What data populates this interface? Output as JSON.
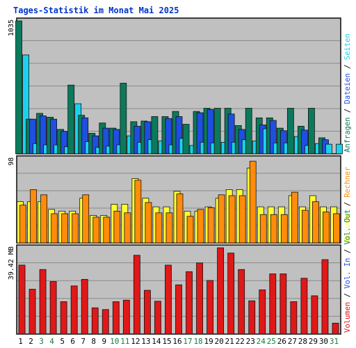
{
  "title": "Tages-Statistik im Monat Mai 2025",
  "colors": {
    "background": "#ffffff",
    "frame": "#0a0a0a",
    "plot_bg": "#c0c0c0",
    "grid": "#8a8a8a",
    "title": "#0033cc",
    "anfragen": "#0b7a5c",
    "dateien": "#1e4fe0",
    "seiten": "#1ad2ee",
    "besuche": "#ffff33",
    "rechner": "#ff8c0a",
    "volumen": "#e01818",
    "weekday": "#000000",
    "weekend": "#117a3a",
    "label_ink": "#000000"
  },
  "chart_data": [
    {
      "type": "bar",
      "ylabel_top": "1035",
      "ymax": 1035,
      "categories": [
        "1",
        "2",
        "3",
        "4",
        "5",
        "6",
        "7",
        "8",
        "9",
        "10",
        "11",
        "12",
        "13",
        "14",
        "15",
        "16",
        "17",
        "18",
        "19",
        "20",
        "21",
        "22",
        "23",
        "24",
        "25",
        "26",
        "27",
        "28",
        "29",
        "30",
        "31"
      ],
      "weekend_days": [
        "3",
        "4",
        "10",
        "11",
        "17",
        "18",
        "24",
        "25",
        "31"
      ],
      "legend": [
        {
          "text": "Anfragen",
          "color_key": "anfragen"
        },
        {
          "text": " / ",
          "color_key": "label_ink"
        },
        {
          "text": "Dateien",
          "color_key": "dateien"
        },
        {
          "text": " / ",
          "color_key": "label_ink"
        },
        {
          "text": "Seiten",
          "color_key": "seiten"
        }
      ],
      "series": [
        {
          "name": "Anfragen",
          "color_key": "anfragen",
          "values": [
            1035,
            270,
            315,
            285,
            190,
            535,
            300,
            160,
            240,
            200,
            550,
            250,
            255,
            290,
            290,
            330,
            230,
            330,
            355,
            355,
            355,
            220,
            355,
            280,
            280,
            200,
            355,
            215,
            355,
            125,
            0
          ]
        },
        {
          "name": "Dateien",
          "color_key": "dateien",
          "values": [
            0,
            270,
            295,
            270,
            175,
            0,
            280,
            140,
            200,
            190,
            0,
            215,
            250,
            0,
            275,
            290,
            0,
            320,
            345,
            0,
            310,
            190,
            0,
            225,
            260,
            180,
            0,
            185,
            0,
            110,
            0
          ]
        },
        {
          "name": "Seiten",
          "color_key": "seiten",
          "values": [
            770,
            80,
            70,
            70,
            55,
            390,
            95,
            50,
            60,
            70,
            140,
            90,
            110,
            100,
            70,
            120,
            65,
            90,
            85,
            90,
            90,
            110,
            100,
            195,
            85,
            85,
            135,
            65,
            80,
            75,
            75
          ]
        }
      ]
    },
    {
      "type": "bar",
      "ylabel_top": "98",
      "ymax": 98,
      "categories": [
        "1",
        "2",
        "3",
        "4",
        "5",
        "6",
        "7",
        "8",
        "9",
        "10",
        "11",
        "12",
        "13",
        "14",
        "15",
        "16",
        "17",
        "18",
        "19",
        "20",
        "21",
        "22",
        "23",
        "24",
        "25",
        "26",
        "27",
        "28",
        "29",
        "30",
        "31"
      ],
      "legend": [
        {
          "text": "Besuche",
          "color_key": "besuche"
        },
        {
          "text": " / ",
          "color_key": "label_ink"
        },
        {
          "text": "Rechner",
          "color_key": "rechner"
        }
      ],
      "series": [
        {
          "name": "Besuche",
          "color_key": "besuche",
          "values": [
            48,
            48,
            48,
            39,
            37,
            37,
            52,
            32,
            32,
            45,
            45,
            75,
            52,
            42,
            42,
            60,
            37,
            37,
            42,
            52,
            62,
            62,
            87,
            42,
            42,
            42,
            55,
            42,
            55,
            42,
            42
          ]
        },
        {
          "name": "Rechner",
          "color_key": "rechner",
          "values": [
            44,
            62,
            56,
            34,
            34,
            34,
            56,
            30,
            30,
            37,
            35,
            73,
            47,
            35,
            35,
            57,
            31,
            39,
            41,
            56,
            55,
            55,
            95,
            33,
            33,
            33,
            59,
            38,
            48,
            36,
            34
          ]
        }
      ]
    },
    {
      "type": "bar",
      "ylabel_top": "39.42 MB",
      "ymax": 39.42,
      "categories": [
        "1",
        "2",
        "3",
        "4",
        "5",
        "6",
        "7",
        "8",
        "9",
        "10",
        "11",
        "12",
        "13",
        "14",
        "15",
        "16",
        "17",
        "18",
        "19",
        "20",
        "21",
        "22",
        "23",
        "24",
        "25",
        "26",
        "27",
        "28",
        "29",
        "30",
        "31"
      ],
      "legend": [
        {
          "text": "Volumen",
          "color_key": "volumen"
        },
        {
          "text": " / ",
          "color_key": "label_ink"
        },
        {
          "text": "Vol. In",
          "color_key": "dateien"
        },
        {
          "text": " / ",
          "color_key": "label_ink"
        },
        {
          "text": "Vol. Out",
          "color_key": "anfragen"
        }
      ],
      "series": [
        {
          "name": "Volumen",
          "color_key": "volumen",
          "values": [
            31.5,
            20.5,
            29.5,
            24,
            14.8,
            22,
            25,
            12,
            11.2,
            14.8,
            15.5,
            36,
            20,
            15,
            31.5,
            22.5,
            28.5,
            32.5,
            24.5,
            39.42,
            37,
            29.5,
            15.2,
            20.2,
            27.5,
            27.5,
            14.8,
            25.5,
            17.5,
            34,
            5
          ]
        }
      ]
    }
  ]
}
